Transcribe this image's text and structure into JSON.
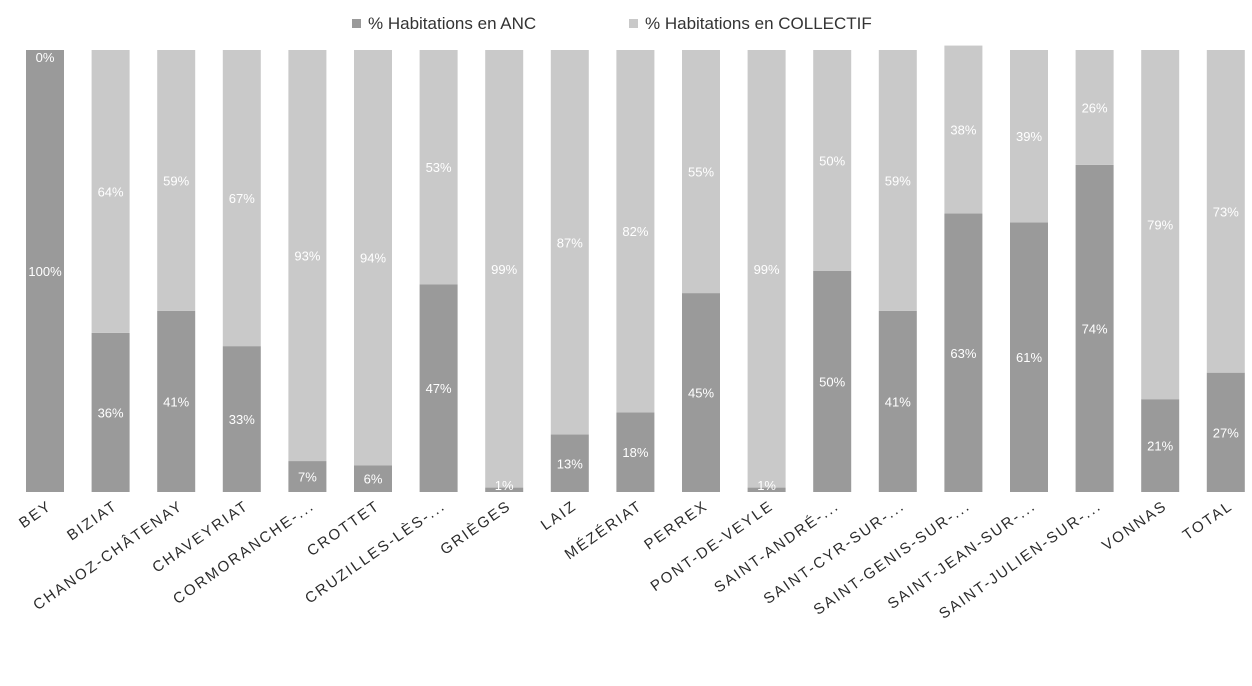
{
  "chart_data": {
    "type": "bar",
    "stacked": true,
    "normalized": true,
    "legend": {
      "position": "top",
      "items": [
        {
          "name": "% Habitations en ANC",
          "color": "#9a9a9a"
        },
        {
          "name": "% Habitations en COLLECTIF",
          "color": "#c9c9c9"
        }
      ]
    },
    "categories": [
      "BEY",
      "BIZIAT",
      "CHANOZ-CHÂTENAY",
      "CHAVEYRIAT",
      "CORMORANCHE-...",
      "CROTTET",
      "CRUZILLES-LÈS-...",
      "GRIÈGES",
      "LAIZ",
      "MÉZÉRIAT",
      "PERREX",
      "PONT-DE-VEYLE",
      "SAINT-ANDRÉ-...",
      "SAINT-CYR-SUR-...",
      "SAINT-GENIS-SUR-...",
      "SAINT-JEAN-SUR-...",
      "SAINT-JULIEN-SUR-...",
      "VONNAS",
      "TOTAL"
    ],
    "series": [
      {
        "name": "% Habitations en ANC",
        "values": [
          100,
          36,
          41,
          33,
          7,
          6,
          47,
          1,
          13,
          18,
          45,
          1,
          50,
          41,
          63,
          61,
          74,
          21,
          27
        ],
        "labels": [
          "100%",
          "36%",
          "41%",
          "33%",
          "7%",
          "6%",
          "47%",
          "1%",
          "13%",
          "18%",
          "45%",
          "1%",
          "50%",
          "41%",
          "63%",
          "61%",
          "74%",
          "21%",
          "27%"
        ]
      },
      {
        "name": "% Habitations en COLLECTIF",
        "values": [
          0,
          64,
          59,
          67,
          93,
          94,
          53,
          99,
          87,
          82,
          55,
          99,
          50,
          59,
          38,
          39,
          26,
          79,
          73
        ],
        "labels": [
          "0%",
          "64%",
          "59%",
          "67%",
          "93%",
          "94%",
          "53%",
          "99%",
          "87%",
          "82%",
          "55%",
          "99%",
          "50%",
          "59%",
          "38%",
          "39%",
          "26%",
          "79%",
          "73%"
        ]
      }
    ],
    "ylim": [
      0,
      100
    ],
    "grid": false
  }
}
